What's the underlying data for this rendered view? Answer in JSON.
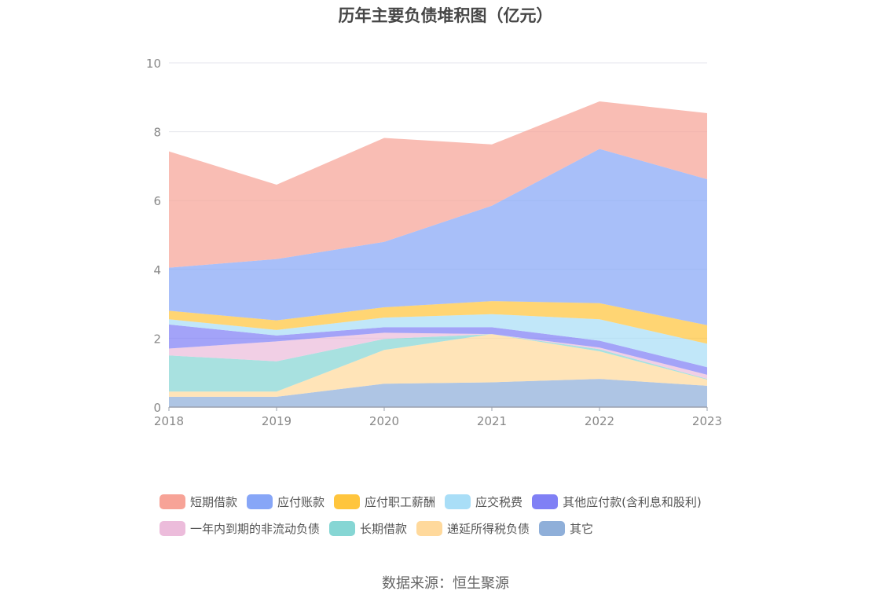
{
  "chart_data": {
    "type": "area",
    "stacked": true,
    "title": "历年主要负债堆积图（亿元）",
    "xlabel": "",
    "ylabel": "",
    "x": [
      "2018",
      "2019",
      "2020",
      "2021",
      "2022",
      "2023"
    ],
    "ylim": [
      0,
      10
    ],
    "yticks": [
      "0",
      "2",
      "4",
      "6",
      "8",
      "10"
    ],
    "grid": true,
    "legend_position": "bottom",
    "series": [
      {
        "name": "其它",
        "color": "#8fafd9",
        "values": [
          0.3,
          0.3,
          0.68,
          0.72,
          0.82,
          0.62
        ]
      },
      {
        "name": "递延所得税负债",
        "color": "#ffd99c",
        "values": [
          0.15,
          0.15,
          0.98,
          1.4,
          0.8,
          0.18
        ]
      },
      {
        "name": "长期借款",
        "color": "#86d6d4",
        "values": [
          1.05,
          0.88,
          0.32,
          0.0,
          0.06,
          0.02
        ]
      },
      {
        "name": "一年内到期的非流动负债",
        "color": "#ecbcdb",
        "values": [
          0.2,
          0.58,
          0.18,
          0.0,
          0.05,
          0.12
        ]
      },
      {
        "name": "其他应付款(含利息和股利)",
        "color": "#8080f5",
        "values": [
          0.7,
          0.17,
          0.16,
          0.2,
          0.2,
          0.22
        ]
      },
      {
        "name": "应交税费",
        "color": "#a9def7",
        "values": [
          0.15,
          0.16,
          0.28,
          0.38,
          0.62,
          0.68
        ]
      },
      {
        "name": "应付职工薪酬",
        "color": "#ffc53d",
        "values": [
          0.25,
          0.28,
          0.3,
          0.38,
          0.47,
          0.54
        ]
      },
      {
        "name": "应付账款",
        "color": "#87a6f7",
        "values": [
          1.25,
          1.78,
          1.9,
          2.77,
          4.48,
          4.24
        ]
      },
      {
        "name": "短期借款",
        "color": "#f7a397",
        "values": [
          3.38,
          2.16,
          3.02,
          1.78,
          1.38,
          1.92
        ]
      }
    ],
    "legend_order": [
      "短期借款",
      "应付账款",
      "应付职工薪酬",
      "应交税费",
      "其他应付款(含利息和股利)",
      "一年内到期的非流动负债",
      "长期借款",
      "递延所得税负债",
      "其它"
    ]
  },
  "source_note": "数据来源：恒生聚源"
}
